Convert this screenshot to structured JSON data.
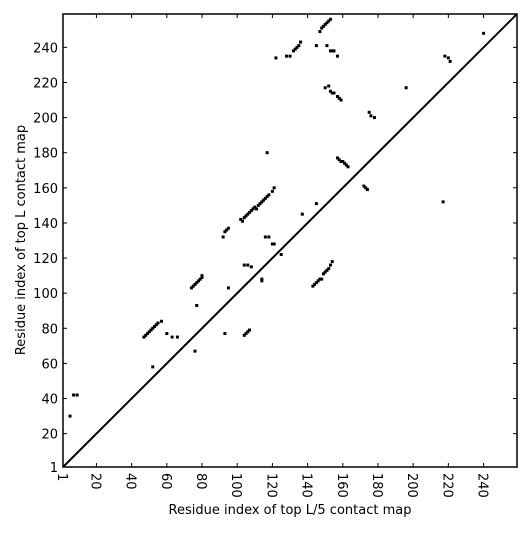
{
  "chart_data": {
    "type": "scatter",
    "x_label": "Residue index of top L/5 contact map",
    "y_label": "Residue index of top L contact map",
    "xlim": [
      1,
      259
    ],
    "ylim": [
      1,
      259
    ],
    "xticks": [
      1,
      20,
      40,
      60,
      80,
      100,
      120,
      140,
      160,
      180,
      200,
      220,
      240
    ],
    "yticks": [
      1,
      20,
      40,
      60,
      80,
      100,
      120,
      140,
      160,
      180,
      200,
      220,
      240
    ],
    "color": "#000000",
    "x": [
      5,
      7,
      9,
      47,
      48,
      49,
      50,
      51,
      52,
      53,
      54,
      55,
      57,
      52,
      60,
      63,
      66,
      74,
      75,
      76,
      77,
      78,
      79,
      80,
      80,
      76,
      77,
      93,
      95,
      92,
      93,
      94,
      95,
      102,
      103,
      104,
      105,
      106,
      107,
      108,
      109,
      110,
      111,
      112,
      113,
      114,
      115,
      116,
      117,
      118,
      120,
      121,
      104,
      106,
      108,
      104,
      105,
      106,
      107,
      114,
      114,
      116,
      118,
      120,
      121,
      117,
      125,
      122,
      128,
      130,
      132,
      133,
      134,
      135,
      136,
      137,
      143,
      144,
      145,
      146,
      147,
      148,
      149,
      150,
      151,
      152,
      153,
      154,
      145,
      145,
      147,
      148,
      149,
      150,
      151,
      152,
      153,
      151,
      150,
      152,
      153,
      154,
      155,
      157,
      158,
      159,
      153,
      154,
      155,
      157,
      157,
      158,
      159,
      160,
      161,
      162,
      163,
      172,
      173,
      174,
      175,
      176,
      178,
      196,
      217,
      218,
      220,
      221,
      240
    ],
    "values": [
      30,
      42,
      42,
      75,
      76,
      77,
      78,
      79,
      80,
      81,
      82,
      83,
      84,
      58,
      77,
      75,
      75,
      103,
      104,
      105,
      106,
      107,
      108,
      109,
      110,
      67,
      93,
      77,
      103,
      132,
      135,
      136,
      137,
      142,
      141,
      143,
      144,
      145,
      146,
      147,
      148,
      149,
      148,
      150,
      151,
      152,
      153,
      154,
      155,
      156,
      158,
      160,
      116,
      116,
      115,
      76,
      77,
      78,
      79,
      107,
      108,
      132,
      132,
      128,
      128,
      180,
      122,
      234,
      235,
      235,
      238,
      239,
      240,
      241,
      243,
      145,
      104,
      105,
      106,
      107,
      108,
      108,
      111,
      112,
      113,
      114,
      116,
      118,
      151,
      241,
      249,
      251,
      252,
      253,
      254,
      255,
      256,
      241,
      217,
      218,
      215,
      214,
      214,
      212,
      211,
      210,
      238,
      238,
      238,
      235,
      177,
      176,
      175,
      175,
      174,
      173,
      172,
      161,
      160,
      159,
      203,
      201,
      200,
      217,
      152,
      235,
      234,
      232,
      248
    ]
  }
}
